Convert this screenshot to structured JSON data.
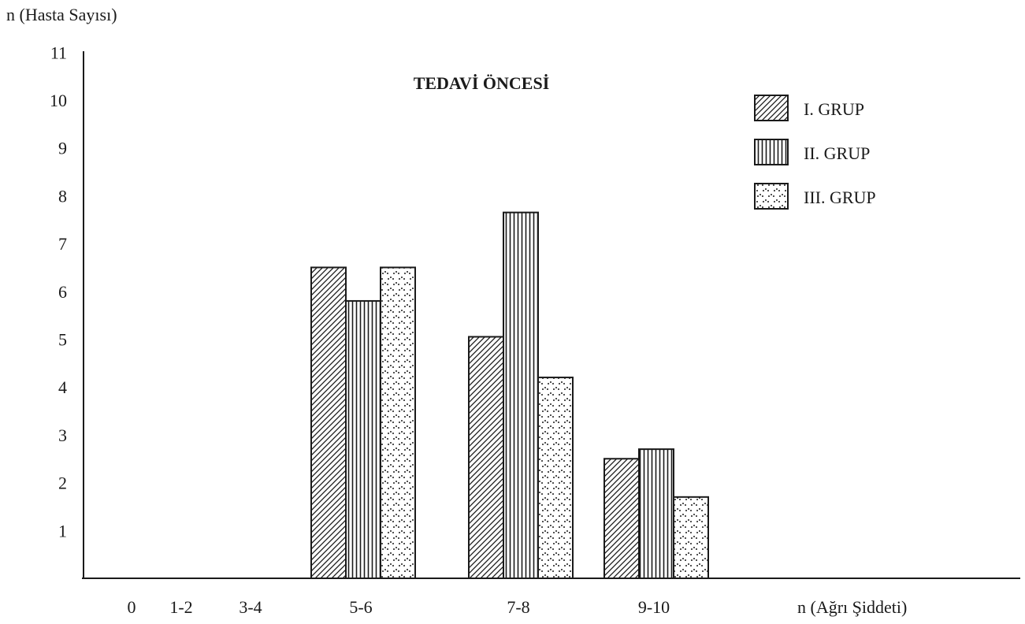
{
  "chart_data": {
    "type": "bar",
    "title": "TEDAVİ ÖNCESİ",
    "ylabel": "n (Hasta Sayısı)",
    "xlabel": "n (Ağrı Şiddeti)",
    "categories": [
      "0",
      "1-2",
      "3-4",
      "5-6",
      "7-8",
      "9-10"
    ],
    "y_ticks": [
      "1",
      "2",
      "3",
      "4",
      "5",
      "6",
      "7",
      "8",
      "9",
      "10",
      "11"
    ],
    "ylim": [
      0,
      11
    ],
    "grid": false,
    "legend_position": "top-right",
    "series": [
      {
        "name": "I. GRUP",
        "pattern": "diagonal-hatch",
        "values": [
          0,
          0,
          0,
          6.5,
          5.05,
          2.5
        ]
      },
      {
        "name": "II. GRUP",
        "pattern": "vertical-stripes",
        "values": [
          0,
          0,
          0,
          5.8,
          7.65,
          2.7
        ]
      },
      {
        "name": "III. GRUP",
        "pattern": "dots",
        "values": [
          0,
          0,
          0,
          6.5,
          4.2,
          1.7
        ]
      }
    ],
    "colors": {
      "ink": "#1a1a1a",
      "fill": "#ffffff"
    }
  }
}
